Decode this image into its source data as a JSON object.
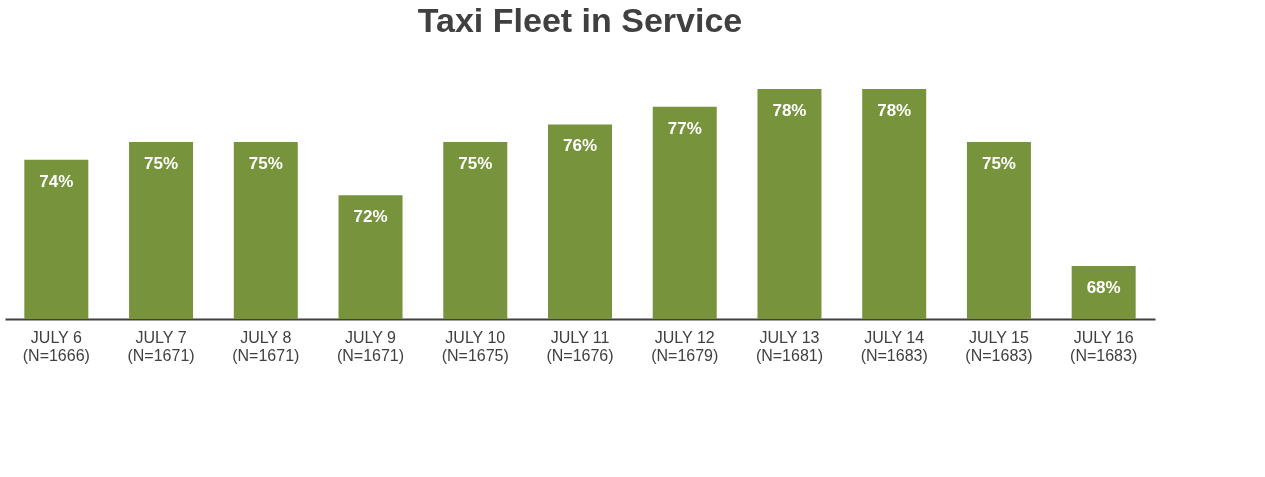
{
  "chart_data": {
    "type": "bar",
    "title": "Taxi Fleet in Service",
    "categories": [
      "JULY 6\n(N=1666)",
      "JULY 7\n(N=1671)",
      "JULY 8\n(N=1671)",
      "JULY 9\n(N=1671)",
      "JULY 10\n(N=1675)",
      "JULY 11\n(N=1676)",
      "JULY 12\n(N=1679)",
      "JULY 13\n(N=1681)",
      "JULY 14\n(N=1683)",
      "JULY 15\n(N=1683)",
      "JULY 16\n(N=1683)"
    ],
    "values": [
      74,
      75,
      75,
      72,
      75,
      76,
      77,
      78,
      78,
      75,
      68
    ],
    "value_labels": [
      "74%",
      "75%",
      "75%",
      "72%",
      "75%",
      "76%",
      "77%",
      "78%",
      "78%",
      "75%",
      "68%"
    ],
    "color": "#77933c",
    "ylim": [
      65,
      78
    ],
    "tick_labels": "x",
    "grid": false
  }
}
